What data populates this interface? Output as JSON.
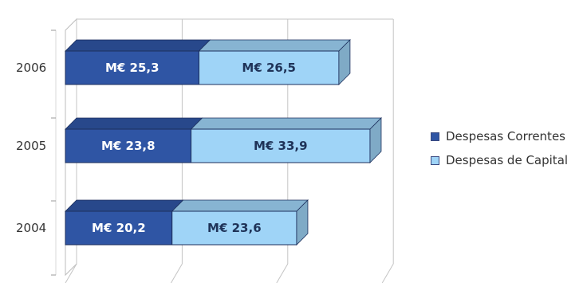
{
  "chart_data": {
    "type": "bar",
    "orientation": "horizontal",
    "stacked": true,
    "style": "3d",
    "categories": [
      "2006",
      "2005",
      "2004"
    ],
    "series": [
      {
        "name": "Despesas Correntes",
        "color": "#2f55a4",
        "values": [
          25.3,
          23.8,
          20.2
        ],
        "labels": [
          "M€ 25,3",
          "M€ 23,8",
          "M€ 20,2"
        ]
      },
      {
        "name": "Despesas de Capital",
        "color": "#9fd4f7",
        "values": [
          26.5,
          33.9,
          23.6
        ],
        "labels": [
          "M€ 26,5",
          "M€ 33,9",
          "M€ 23,6"
        ]
      }
    ],
    "xlim": [
      0,
      60
    ],
    "grid": true,
    "legend_position": "right"
  }
}
